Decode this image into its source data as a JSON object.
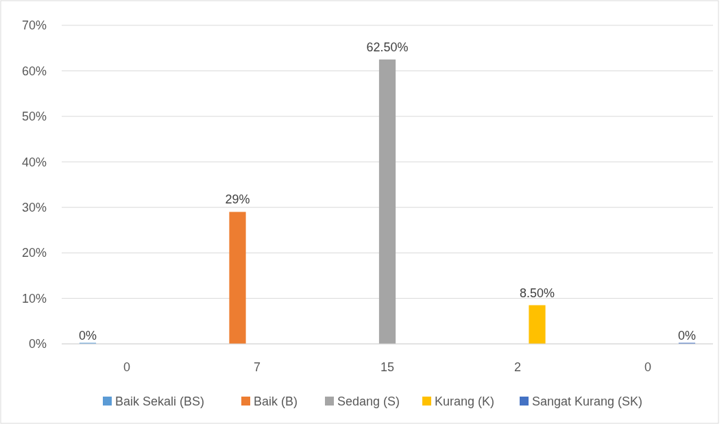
{
  "chart_data": {
    "type": "bar",
    "categories": [
      "0",
      "7",
      "15",
      "2",
      "0"
    ],
    "series": [
      {
        "name": "Baik Sekali (BS)",
        "color": "#5b9bd5",
        "values": [
          0,
          null,
          null,
          null,
          null
        ],
        "value_labels": [
          "0%",
          null,
          null,
          null,
          null
        ]
      },
      {
        "name": "Baik (B)",
        "color": "#ed7d31",
        "values": [
          null,
          29,
          null,
          null,
          null
        ],
        "value_labels": [
          null,
          "29%",
          null,
          null,
          null
        ]
      },
      {
        "name": "Sedang (S)",
        "color": "#a5a5a5",
        "values": [
          null,
          null,
          62.5,
          null,
          null
        ],
        "value_labels": [
          null,
          null,
          "62.50%",
          null,
          null
        ]
      },
      {
        "name": "Kurang (K)",
        "color": "#ffc000",
        "values": [
          null,
          null,
          null,
          8.5,
          null
        ],
        "value_labels": [
          null,
          null,
          null,
          "8.50%",
          null
        ]
      },
      {
        "name": "Sangat Kurang (SK)",
        "color": "#4472c4",
        "values": [
          null,
          null,
          null,
          null,
          0
        ],
        "value_labels": [
          null,
          null,
          null,
          null,
          "0%"
        ]
      }
    ],
    "ylim": [
      0,
      70
    ],
    "yticks": [
      {
        "value": 0,
        "label": "0%"
      },
      {
        "value": 10,
        "label": "10%"
      },
      {
        "value": 20,
        "label": "20%"
      },
      {
        "value": 30,
        "label": "30%"
      },
      {
        "value": 40,
        "label": "40%"
      },
      {
        "value": 50,
        "label": "50%"
      },
      {
        "value": 60,
        "label": "60%"
      },
      {
        "value": 70,
        "label": "70%"
      }
    ],
    "grid": "y",
    "legend": "bottom"
  }
}
